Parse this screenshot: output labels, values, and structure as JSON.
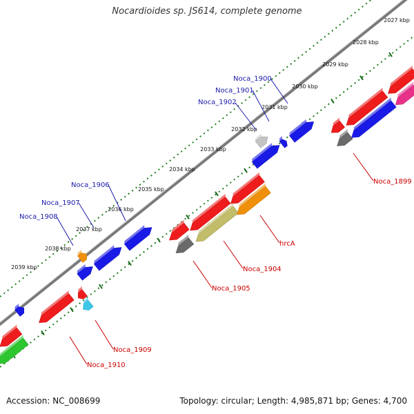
{
  "title": "Nocardioides sp. JS614, complete genome",
  "footer": {
    "accession": "Accession: NC_008699",
    "summary": "Topology: circular; Length: 4,985,871 bp; Genes: 4,700"
  },
  "colors": {
    "plus_strand_label": "#1a1aaa",
    "minus_strand_label": "#cc0000",
    "backbone": "#7a7a7a",
    "ticks": "#1a7a1a"
  },
  "ticks": [
    {
      "label": "2027 kbp"
    },
    {
      "label": "2028 kbp"
    },
    {
      "label": "2029 kbp"
    },
    {
      "label": "2030 kbp"
    },
    {
      "label": "2031 kbp"
    },
    {
      "label": "2032 kbp"
    },
    {
      "label": "2033 kbp"
    },
    {
      "label": "2034 kbp"
    },
    {
      "label": "2035 kbp"
    },
    {
      "label": "2036 kbp"
    },
    {
      "label": "2037 kbp"
    },
    {
      "label": "2038 kbp"
    },
    {
      "label": "2039 kbp"
    }
  ],
  "genes": [
    {
      "name": "Noca_1899",
      "strand": "minus",
      "color": "#6a6a6a"
    },
    {
      "name": "hrcA",
      "strand": "minus",
      "color": "#f0900a"
    },
    {
      "name": "Noca_1904",
      "strand": "minus",
      "color": "#c2bd6a"
    },
    {
      "name": "Noca_1905",
      "strand": "minus",
      "color": "#6a6a6a"
    },
    {
      "name": "Noca_1909",
      "strand": "minus",
      "color": "#3ec8e8"
    },
    {
      "name": "Noca_1910",
      "strand": "minus",
      "color": "#ee1c1c"
    },
    {
      "name": "Noca_1900",
      "strand": "plus",
      "color": "#1a1ae6"
    },
    {
      "name": "Noca_1901",
      "strand": "plus",
      "color": "#1a1ae6"
    },
    {
      "name": "Noca_1902",
      "strand": "plus",
      "color": "#c4c4c4"
    },
    {
      "name": "Noca_1906",
      "strand": "plus",
      "color": "#1a1ae6"
    },
    {
      "name": "Noca_1907",
      "strand": "plus",
      "color": "#1a1ae6"
    },
    {
      "name": "Noca_1908",
      "strand": "plus",
      "color": "#f0900a"
    }
  ]
}
